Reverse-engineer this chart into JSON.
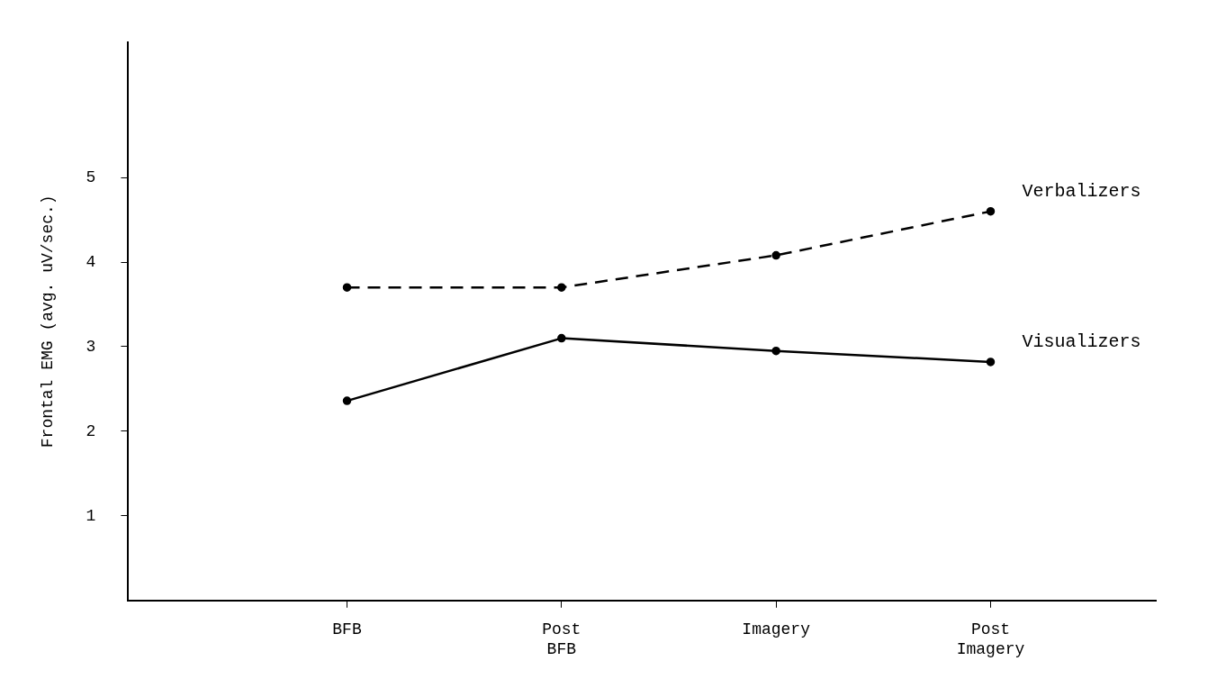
{
  "chart_data": {
    "type": "line",
    "ylabel": "Frontal EMG (avg. uV/sec.)",
    "categories": [
      "BFB",
      "Post BFB",
      "Imagery",
      "Post Imagery"
    ],
    "series": [
      {
        "name": "Verbalizers",
        "color": "#000000",
        "line_style": "dashed",
        "values": [
          3.7,
          3.7,
          4.08,
          4.6
        ]
      },
      {
        "name": "Visualizers",
        "color": "#000000",
        "line_style": "solid",
        "values": [
          2.36,
          3.1,
          2.95,
          2.82
        ]
      }
    ],
    "ylim": [
      0,
      6.6
    ],
    "yticks": [
      1,
      2,
      3,
      4,
      5
    ],
    "grid": false,
    "legend": false,
    "marker": "circle"
  }
}
